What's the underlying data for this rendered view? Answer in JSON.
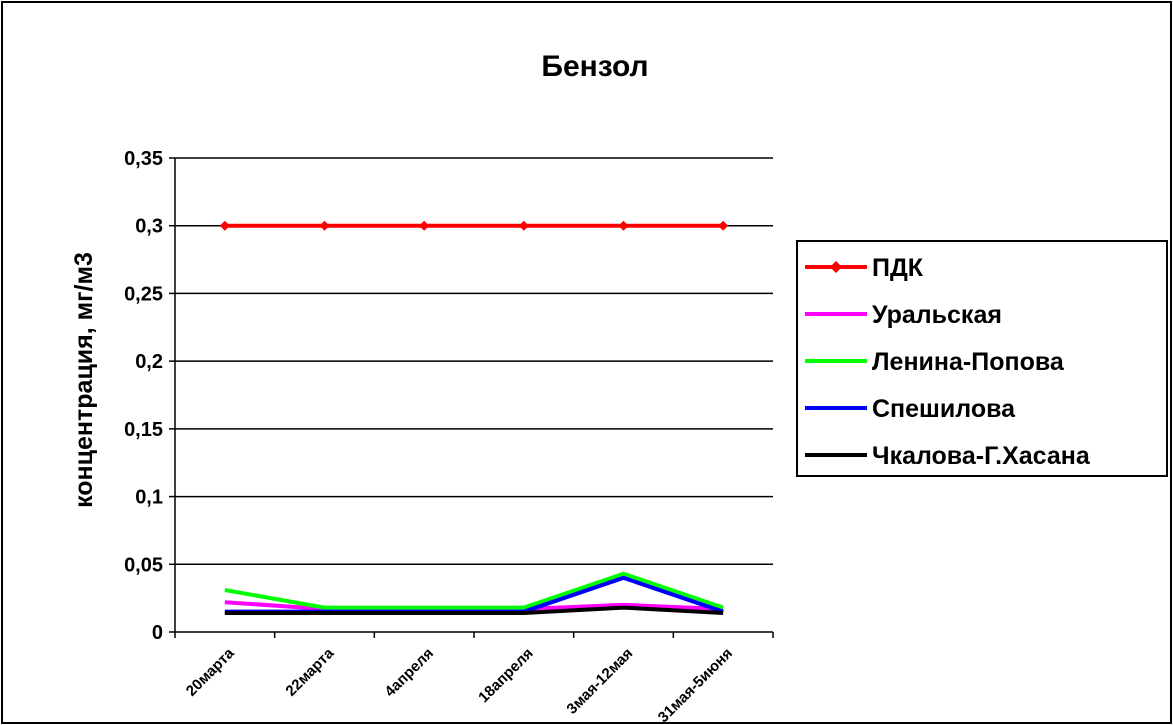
{
  "chart_data": {
    "type": "line",
    "title": "Бензол",
    "xlabel": "",
    "ylabel": "концентрация, мг/м3",
    "categories": [
      "20марта",
      "22марта",
      "4апреля",
      "18апреля",
      "3мая-12мая",
      "31мая-5июня"
    ],
    "ylim": [
      0,
      0.35
    ],
    "yticks": [
      0,
      0.05,
      0.1,
      0.15,
      0.2,
      0.25,
      0.3,
      0.35
    ],
    "ytick_labels": [
      "0",
      "0,05",
      "0,1",
      "0,15",
      "0,2",
      "0,25",
      "0,3",
      "0,35"
    ],
    "grid": true,
    "legend_position": "right",
    "series": [
      {
        "name": "ПДК",
        "color": "#ff0000",
        "marker": "diamond",
        "values": [
          0.3,
          0.3,
          0.3,
          0.3,
          0.3,
          0.3
        ]
      },
      {
        "name": "Уральская",
        "color": "#ff00ff",
        "marker": "none",
        "values": [
          0.022,
          0.017,
          0.017,
          0.017,
          0.02,
          0.017
        ]
      },
      {
        "name": "Ленина-Попова",
        "color": "#00ff00",
        "marker": "none",
        "values": [
          0.031,
          0.018,
          0.018,
          0.018,
          0.043,
          0.018
        ]
      },
      {
        "name": "Спешилова",
        "color": "#0000ff",
        "marker": "none",
        "values": [
          0.015,
          0.015,
          0.015,
          0.015,
          0.04,
          0.015
        ]
      },
      {
        "name": "Чкалова-Г.Хасана",
        "color": "#000000",
        "marker": "none",
        "values": [
          0.014,
          0.014,
          0.014,
          0.014,
          0.018,
          0.014
        ]
      }
    ]
  }
}
